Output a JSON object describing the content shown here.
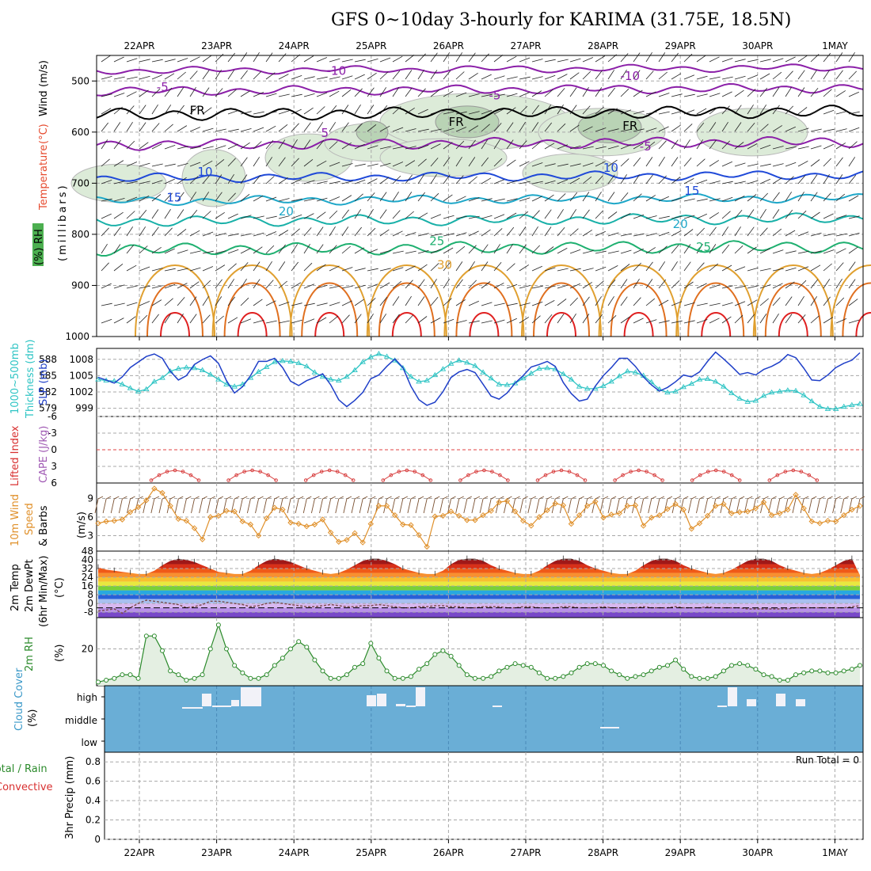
{
  "title": "GFS 0~10day 3-hourly for KARIMA (31.75E, 18.5N)",
  "dates": [
    "22APR",
    "23APR",
    "24APR",
    "25APR",
    "26APR",
    "27APR",
    "28APR",
    "29APR",
    "30APR",
    "1MAY"
  ],
  "colors": {
    "purple": "#8b1fa8",
    "blue": "#1f49d8",
    "cyan": "#1ea7c8",
    "teal": "#18b0a8",
    "green": "#1fb070",
    "orange": "#e0a030",
    "darkorange": "#e07020",
    "red": "#e02020",
    "rh": "#9bc79b",
    "cloud": "#6aaed6",
    "slp": "#1f3fc8",
    "thick": "#2ec4c4",
    "li": "#d83030",
    "wind": "#e0902a",
    "rh2m": "#2b8a2b"
  },
  "chart_data": [
    {
      "type": "contour",
      "name": "upper-air-cross-section",
      "ylabel_parts": [
        "Wind",
        "(m/s)",
        "Temperature",
        "(°C)",
        "RH",
        "(%)"
      ],
      "yunit": "(millibars)",
      "yticks": [
        "500",
        "600",
        "700",
        "800",
        "900",
        "1000"
      ],
      "ylim": [
        450,
        1000
      ],
      "contour_labels": [
        {
          "text": "-10",
          "day": 2.55,
          "p": 480,
          "c": "purple"
        },
        {
          "text": "-10",
          "day": 6.35,
          "p": 490,
          "c": "purple"
        },
        {
          "text": "-5",
          "day": 0.3,
          "p": 512,
          "c": "purple"
        },
        {
          "text": "-5",
          "day": 4.6,
          "p": 528,
          "c": "purple"
        },
        {
          "text": "-5",
          "day": 6.55,
          "p": 628,
          "c": "purple"
        },
        {
          "text": "FR",
          "day": 0.75,
          "p": 558,
          "c": "black"
        },
        {
          "text": "FR",
          "day": 4.1,
          "p": 580,
          "c": "black"
        },
        {
          "text": "FR",
          "day": 6.35,
          "p": 588,
          "c": "black"
        },
        {
          "text": "5",
          "day": 2.4,
          "p": 602,
          "c": "purple"
        },
        {
          "text": "10",
          "day": 0.85,
          "p": 678,
          "c": "blue"
        },
        {
          "text": "10",
          "day": 6.1,
          "p": 670,
          "c": "blue"
        },
        {
          "text": "15",
          "day": 0.45,
          "p": 728,
          "c": "blue"
        },
        {
          "text": "15",
          "day": 7.15,
          "p": 715,
          "c": "blue"
        },
        {
          "text": "20",
          "day": 1.9,
          "p": 755,
          "c": "cyan"
        },
        {
          "text": "20",
          "day": 7.0,
          "p": 780,
          "c": "cyan"
        },
        {
          "text": "25",
          "day": 3.85,
          "p": 813,
          "c": "green"
        },
        {
          "text": "25",
          "day": 7.3,
          "p": 825,
          "c": "green"
        },
        {
          "text": "30",
          "day": 3.95,
          "p": 860,
          "c": "orange"
        }
      ]
    },
    {
      "type": "line",
      "name": "slp-thickness",
      "ylabel": [
        "1000~500mb",
        "Thickness (dm)",
        "SLP (mb)"
      ],
      "yticks_left": [
        "588",
        "585",
        "582",
        "579"
      ],
      "yticks_right": [
        "1008",
        "1005",
        "1002",
        "999"
      ],
      "series": [
        {
          "name": "SLP",
          "values": [
            1004.8,
            1004.4,
            1003.9,
            1004.9,
            1006.4,
            1007.3,
            1008.2,
            1008.6,
            1007.9,
            1005.8,
            1004.4,
            1005.1,
            1006.9,
            1007.7,
            1008.3,
            1007.1,
            1004.3,
            1002.3,
            1003.3,
            1005.1,
            1007.4,
            1007.4,
            1007.9,
            1006.4,
            1004.2,
            1003.5,
            1004.3,
            1004.8,
            1005.4,
            1003.6,
            1001.2,
            1000.1,
            1001.1,
            1002.4,
            1004.6,
            1005.2,
            1006.6,
            1007.8,
            1006.4,
            1003.4,
            1001.2,
            1000.3,
            1000.8,
            1002.5,
            1004.8,
            1005.7,
            1006.1,
            1005.6,
            1003.7,
            1001.8,
            1001.3,
            1002.3,
            1003.9,
            1005.1,
            1006.5,
            1006.9,
            1007.4,
            1006.6,
            1004.0,
            1002.2,
            1001.0,
            1001.3,
            1003.4,
            1005.1,
            1006.4,
            1007.9,
            1007.9,
            1006.6,
            1004.9,
            1003.6,
            1002.6,
            1003.2,
            1004.1,
            1005.2,
            1004.9,
            1005.7,
            1007.4,
            1008.9,
            1007.8,
            1006.6,
            1005.3,
            1005.6,
            1005.2,
            1006.1,
            1006.6,
            1007.3,
            1008.5,
            1008.0,
            1006.3,
            1004.4,
            1004.3,
            1005.2,
            1006.4,
            1007.1,
            1007.6,
            1008.8
          ]
        },
        {
          "name": "Thickness",
          "values": [
            584.3,
            584.1,
            584.0,
            583.4,
            582.7,
            582.1,
            582.5,
            583.9,
            584.6,
            585.8,
            586.3,
            586.5,
            586.4,
            586.0,
            585.2,
            584.3,
            583.4,
            583.0,
            583.4,
            584.6,
            585.7,
            586.6,
            587.5,
            587.7,
            587.6,
            587.3,
            586.7,
            585.6,
            584.8,
            584.3,
            584.1,
            584.8,
            586.0,
            587.5,
            588.4,
            589.0,
            588.5,
            587.8,
            586.4,
            584.8,
            583.9,
            584.1,
            585.1,
            586.2,
            587.2,
            587.8,
            587.4,
            586.8,
            585.6,
            584.5,
            583.4,
            583.3,
            583.6,
            584.5,
            585.4,
            586.3,
            586.4,
            586.2,
            585.3,
            584.3,
            583.0,
            582.6,
            582.6,
            583.1,
            583.9,
            584.9,
            585.8,
            585.6,
            585.0,
            583.8,
            582.5,
            581.9,
            582.1,
            582.9,
            583.5,
            584.3,
            584.4,
            583.9,
            583.0,
            581.8,
            580.8,
            580.2,
            580.4,
            581.3,
            581.9,
            582.1,
            582.3,
            582.2,
            581.4,
            580.3,
            579.3,
            578.9,
            578.9,
            579.3,
            579.6,
            579.8
          ]
        }
      ]
    },
    {
      "type": "line",
      "name": "lifted-index-cape",
      "ylabel": [
        "Lifted Index",
        "CAPE (J/kg)"
      ],
      "yticks": [
        "-6",
        "-3",
        "0",
        "3",
        "6"
      ],
      "ylim": [
        -6,
        6
      ]
    },
    {
      "type": "line",
      "name": "10m-wind",
      "ylabel": [
        "10m Wind",
        "Speed",
        "& Barbs"
      ],
      "yunit": "(m/s)",
      "yticks": [
        "3",
        "6",
        "9"
      ],
      "series": [
        {
          "name": "10m wind speed",
          "values": [
            5.0,
            5.3,
            5.4,
            5.6,
            6.8,
            7.6,
            8.7,
            10.6,
            9.9,
            7.8,
            5.7,
            5.4,
            4.2,
            2.4,
            6.0,
            6.2,
            7.0,
            6.9,
            5.3,
            4.8,
            3.0,
            5.8,
            7.5,
            7.2,
            5.1,
            4.9,
            4.5,
            4.8,
            5.6,
            3.5,
            2.0,
            2.3,
            3.4,
            1.9,
            4.9,
            7.8,
            7.8,
            6.3,
            4.8,
            4.7,
            3.1,
            1.2,
            6.1,
            6.2,
            6.9,
            6.2,
            5.5,
            5.5,
            6.3,
            7.0,
            8.4,
            8.6,
            6.9,
            5.4,
            4.6,
            6.0,
            7.1,
            8.2,
            7.9,
            4.9,
            6.3,
            7.8,
            8.5,
            5.9,
            6.4,
            6.6,
            7.8,
            7.9,
            4.6,
            5.9,
            6.3,
            7.3,
            8.1,
            7.2,
            4.1,
            5.0,
            6.2,
            7.8,
            8.1,
            6.6,
            6.8,
            6.9,
            7.4,
            8.4,
            6.3,
            6.6,
            7.2,
            9.6,
            7.4,
            5.3,
            5.0,
            5.4,
            5.3,
            6.3,
            7.2,
            7.8
          ]
        }
      ]
    },
    {
      "type": "area",
      "name": "2m-temp-dewpoint",
      "ylabel": [
        "2m Temp",
        "2m DewPt",
        "(6hr Min/Max)"
      ],
      "yunit": "(°C)",
      "yticks": [
        "48",
        "40",
        "32",
        "24",
        "16",
        "8",
        "0",
        "-8"
      ],
      "series": [
        {
          "name": "2m Temp",
          "values": [
            33,
            31,
            30,
            29,
            28,
            27,
            27,
            30,
            35,
            39,
            41,
            40,
            38,
            35,
            32,
            29,
            28,
            27,
            27,
            30,
            35,
            39,
            41,
            40,
            38,
            35,
            32,
            30,
            28,
            27,
            28,
            31,
            35,
            39,
            41,
            41,
            39,
            36,
            32,
            30,
            28,
            27,
            27,
            30,
            36,
            40,
            41,
            41,
            39,
            35,
            32,
            30,
            28,
            27,
            27,
            30,
            35,
            39,
            41,
            41,
            39,
            35,
            32,
            30,
            28,
            27,
            27,
            30,
            35,
            39,
            41,
            41,
            39,
            35,
            32,
            30,
            28,
            27,
            28,
            31,
            35,
            39,
            41,
            41,
            39,
            35,
            32,
            30,
            28,
            27,
            28,
            31,
            35,
            39,
            41,
            26
          ]
        },
        {
          "name": "2m DewPt",
          "values": [
            -7,
            -6,
            -5,
            -9,
            -4,
            0,
            3,
            2,
            1,
            0,
            -1,
            -4,
            -3,
            -1,
            2,
            2,
            1,
            0,
            -1,
            -3,
            -2,
            0,
            1,
            0,
            -1,
            -2,
            -3,
            -3,
            -2,
            -1,
            -2,
            -3,
            -3,
            -2,
            -2,
            -1,
            -2,
            -3,
            -4,
            -4,
            -3,
            -3,
            -2,
            -2,
            -3,
            -3,
            -4,
            -4,
            -3,
            -3,
            -3,
            -4,
            -4,
            -3,
            -3,
            -4,
            -4,
            -4,
            -3,
            -3,
            -4,
            -4,
            -4,
            -3,
            -4,
            -4,
            -4,
            -4,
            -3,
            -4,
            -4,
            -4,
            -3,
            -4,
            -4,
            -4,
            -3,
            -4,
            -4,
            -4,
            -4,
            -5,
            -5,
            -5,
            -5,
            -5,
            -5,
            -4,
            -4,
            -4,
            -4,
            -4,
            -4,
            -4,
            -3,
            -2
          ]
        }
      ]
    },
    {
      "type": "area",
      "name": "2m-rh",
      "ylabel": [
        "2m RH"
      ],
      "yunit": "(%)",
      "yticks": [
        "20"
      ],
      "series": [
        {
          "name": "2m RH",
          "values": [
            2,
            3,
            4,
            6,
            6,
            4,
            27,
            27,
            19,
            8,
            6,
            3,
            4,
            6,
            20,
            33,
            20,
            11,
            7,
            4,
            4,
            6,
            11,
            15,
            20,
            24,
            21,
            14,
            8,
            4,
            4,
            6,
            10,
            12,
            23,
            15,
            8,
            4,
            4,
            5,
            9,
            12,
            17,
            19,
            16,
            11,
            6,
            4,
            4,
            5,
            8,
            10,
            12,
            11,
            10,
            7,
            4,
            4,
            5,
            7,
            10,
            12,
            12,
            11,
            8,
            6,
            4,
            5,
            6,
            8,
            10,
            11,
            14,
            9,
            5,
            4,
            4,
            5,
            8,
            11,
            12,
            11,
            9,
            6,
            5,
            3,
            3,
            6,
            7,
            8,
            8,
            7,
            7,
            8,
            9,
            11
          ]
        }
      ]
    },
    {
      "type": "bar",
      "name": "cloud-cover",
      "ylabel": [
        "Cloud Cover",
        "(%)"
      ],
      "categories": [
        "high",
        "middle",
        "low"
      ]
    },
    {
      "type": "bar",
      "name": "precip",
      "ylabel": [
        "Total / Rain",
        "Convective",
        "3hr Precip (mm)"
      ],
      "yticks": [
        "0",
        "0.2",
        "0.4",
        "0.6",
        "0.8"
      ],
      "ylim": [
        0,
        0.9
      ],
      "run_total_label": "Run Total =  0"
    }
  ]
}
